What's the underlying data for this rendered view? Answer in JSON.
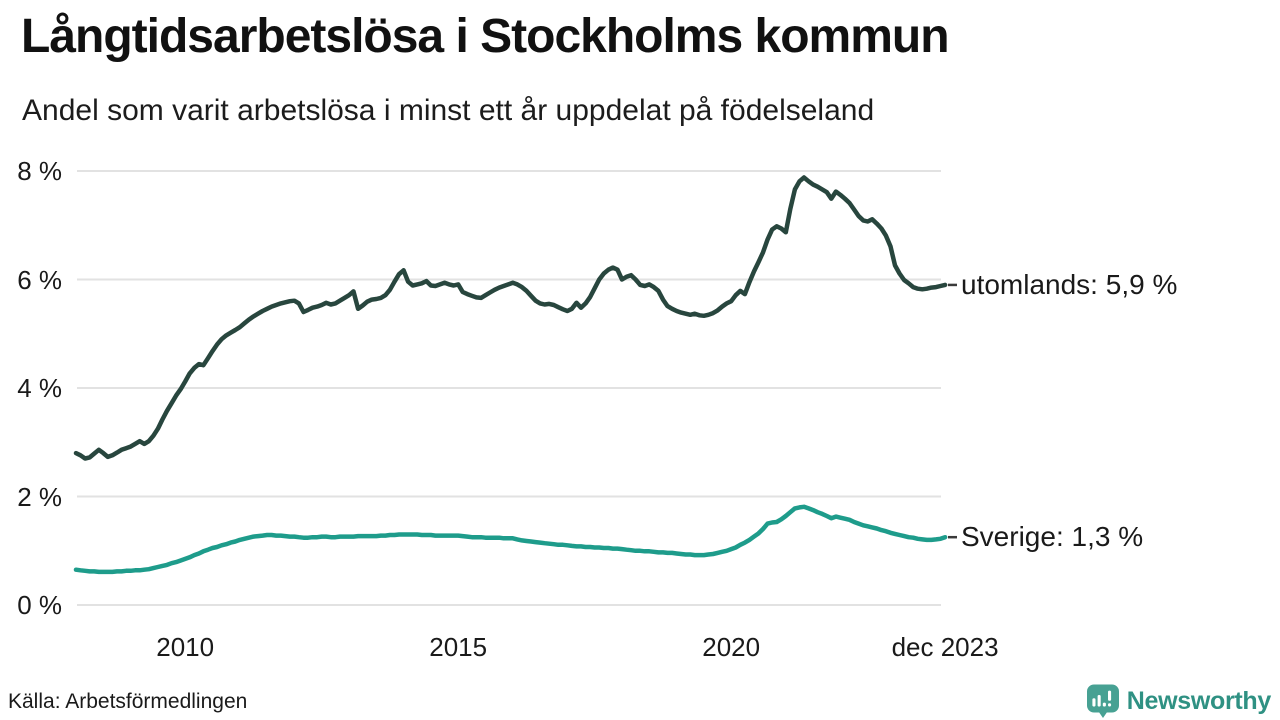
{
  "header": {
    "title": "Långtidsarbetslösa i Stockholms kommun",
    "subtitle": "Andel som varit arbetslösa i minst ett år uppdelat på födelseland"
  },
  "footer": {
    "source": "Källa: Arbetsförmedlingen",
    "brand": "Newsworthy"
  },
  "colors": {
    "foreign_line": "#28463e",
    "sweden_line": "#1e9c8b",
    "grid": "#e2e2e2",
    "label_dash": "#3a3a3a",
    "text": "#1a1a1a",
    "brand_icon": "#47a193",
    "brand_text": "#2f9183"
  },
  "chart_data": {
    "type": "line",
    "title": "Långtidsarbetslösa i Stockholms kommun",
    "subtitle": "Andel som varit arbetslösa i minst ett år uppdelat på födelseland",
    "unit": "%",
    "x_range": [
      2008.0,
      2023.917
    ],
    "ylim": [
      0,
      8
    ],
    "grid": "horizontal",
    "legend_position": "end-of-line labels at right",
    "yticks": [
      {
        "value": 8,
        "label": "8 %"
      },
      {
        "value": 6,
        "label": "6 %"
      },
      {
        "value": 4,
        "label": "4 %"
      },
      {
        "value": 2,
        "label": "2 %"
      },
      {
        "value": 0,
        "label": "0 %"
      }
    ],
    "xticks": [
      {
        "value": 2010,
        "label": "2010"
      },
      {
        "value": 2015,
        "label": "2015"
      },
      {
        "value": 2020,
        "label": "2020"
      },
      {
        "value": 2023.917,
        "label": "dec 2023"
      }
    ],
    "series": [
      {
        "name": "utomlands",
        "end_label": "utomlands: 5,9 %",
        "last_value_label": "5,9 %",
        "color_key": "foreign_line",
        "start_year": 2008,
        "cadence": "monthly",
        "monthly_values": [
          2.8,
          2.76,
          2.7,
          2.72,
          2.79,
          2.86,
          2.8,
          2.73,
          2.76,
          2.81,
          2.86,
          2.89,
          2.92,
          2.97,
          3.02,
          2.97,
          3.02,
          3.12,
          3.25,
          3.42,
          3.58,
          3.72,
          3.86,
          3.98,
          4.12,
          4.27,
          4.37,
          4.44,
          4.42,
          4.55,
          4.68,
          4.8,
          4.9,
          4.97,
          5.02,
          5.07,
          5.12,
          5.19,
          5.26,
          5.32,
          5.37,
          5.42,
          5.46,
          5.5,
          5.53,
          5.56,
          5.58,
          5.6,
          5.61,
          5.56,
          5.4,
          5.44,
          5.48,
          5.5,
          5.53,
          5.57,
          5.54,
          5.56,
          5.61,
          5.66,
          5.71,
          5.78,
          5.46,
          5.52,
          5.59,
          5.63,
          5.64,
          5.66,
          5.71,
          5.81,
          5.96,
          6.1,
          6.17,
          5.96,
          5.89,
          5.91,
          5.93,
          5.97,
          5.89,
          5.88,
          5.91,
          5.94,
          5.91,
          5.89,
          5.91,
          5.77,
          5.73,
          5.7,
          5.67,
          5.66,
          5.71,
          5.76,
          5.81,
          5.85,
          5.88,
          5.91,
          5.94,
          5.91,
          5.86,
          5.79,
          5.7,
          5.61,
          5.56,
          5.54,
          5.55,
          5.53,
          5.49,
          5.45,
          5.42,
          5.46,
          5.57,
          5.48,
          5.56,
          5.68,
          5.84,
          6.0,
          6.11,
          6.18,
          6.22,
          6.18,
          6.0,
          6.05,
          6.08,
          6.0,
          5.9,
          5.88,
          5.91,
          5.86,
          5.79,
          5.63,
          5.51,
          5.46,
          5.42,
          5.39,
          5.37,
          5.35,
          5.37,
          5.34,
          5.33,
          5.35,
          5.38,
          5.43,
          5.5,
          5.56,
          5.6,
          5.71,
          5.79,
          5.73,
          5.95,
          6.15,
          6.32,
          6.5,
          6.74,
          6.92,
          6.98,
          6.94,
          6.87,
          7.3,
          7.66,
          7.81,
          7.88,
          7.81,
          7.75,
          7.71,
          7.66,
          7.61,
          7.49,
          7.62,
          7.56,
          7.49,
          7.41,
          7.29,
          7.17,
          7.09,
          7.07,
          7.11,
          7.03,
          6.94,
          6.81,
          6.61,
          6.26,
          6.11,
          5.99,
          5.93,
          5.86,
          5.83,
          5.82,
          5.83,
          5.85,
          5.86,
          5.88,
          5.9
        ]
      },
      {
        "name": "Sverige",
        "end_label": "Sverige: 1,3 %",
        "last_value_label": "1,3 %",
        "color_key": "sweden_line",
        "start_year": 2008,
        "cadence": "monthly",
        "monthly_values": [
          0.65,
          0.64,
          0.63,
          0.62,
          0.62,
          0.61,
          0.61,
          0.61,
          0.61,
          0.62,
          0.62,
          0.63,
          0.63,
          0.64,
          0.64,
          0.65,
          0.66,
          0.68,
          0.7,
          0.72,
          0.74,
          0.77,
          0.79,
          0.82,
          0.85,
          0.88,
          0.92,
          0.95,
          0.99,
          1.02,
          1.05,
          1.07,
          1.1,
          1.12,
          1.15,
          1.17,
          1.2,
          1.22,
          1.24,
          1.26,
          1.27,
          1.28,
          1.29,
          1.29,
          1.28,
          1.28,
          1.27,
          1.26,
          1.26,
          1.25,
          1.24,
          1.24,
          1.25,
          1.25,
          1.26,
          1.26,
          1.25,
          1.25,
          1.26,
          1.26,
          1.26,
          1.26,
          1.27,
          1.27,
          1.27,
          1.27,
          1.27,
          1.28,
          1.28,
          1.29,
          1.29,
          1.3,
          1.3,
          1.3,
          1.3,
          1.3,
          1.29,
          1.29,
          1.29,
          1.28,
          1.28,
          1.28,
          1.28,
          1.28,
          1.28,
          1.27,
          1.26,
          1.25,
          1.25,
          1.25,
          1.24,
          1.24,
          1.24,
          1.24,
          1.23,
          1.23,
          1.23,
          1.21,
          1.19,
          1.18,
          1.17,
          1.16,
          1.15,
          1.14,
          1.13,
          1.12,
          1.11,
          1.11,
          1.1,
          1.09,
          1.08,
          1.08,
          1.07,
          1.07,
          1.06,
          1.06,
          1.05,
          1.05,
          1.04,
          1.04,
          1.03,
          1.02,
          1.01,
          1.0,
          1.0,
          0.99,
          0.99,
          0.98,
          0.97,
          0.97,
          0.96,
          0.96,
          0.95,
          0.94,
          0.93,
          0.93,
          0.92,
          0.92,
          0.92,
          0.93,
          0.94,
          0.96,
          0.98,
          1.0,
          1.03,
          1.06,
          1.11,
          1.15,
          1.2,
          1.26,
          1.32,
          1.4,
          1.5,
          1.52,
          1.53,
          1.58,
          1.64,
          1.71,
          1.78,
          1.8,
          1.81,
          1.78,
          1.75,
          1.71,
          1.68,
          1.64,
          1.6,
          1.63,
          1.61,
          1.59,
          1.57,
          1.53,
          1.5,
          1.47,
          1.45,
          1.43,
          1.41,
          1.38,
          1.36,
          1.33,
          1.31,
          1.29,
          1.27,
          1.25,
          1.24,
          1.22,
          1.21,
          1.2,
          1.2,
          1.21,
          1.22,
          1.25
        ]
      }
    ]
  }
}
